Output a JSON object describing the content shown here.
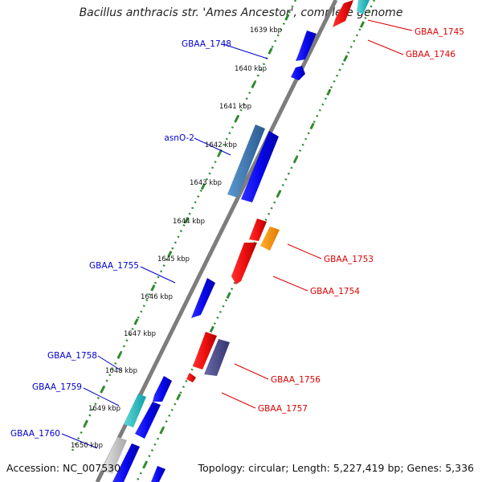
{
  "header": {
    "title": "Bacillus anthracis str. 'Ames Ancestor', complete genome"
  },
  "footer": {
    "accession": "Accession: NC_007530",
    "summary": "Topology: circular; Length: 5,227,419 bp; Genes: 5,336"
  },
  "colors": {
    "backbone": "#888888",
    "forward_label": "#0000cc",
    "reverse_label": "#dd0000",
    "tick_mark": "#2e8b2e",
    "blue_gene": "#1010ee",
    "red_gene": "#ee1111",
    "orange_gene": "#ff9900",
    "teal_gene": "#1fb8b8",
    "steelblue_gene": "#3a78b8",
    "darkpurple_gene": "#4a4a8a",
    "grey_gene": "#c8c8c8"
  },
  "scale": {
    "ticks": [
      "1639 kbp",
      "1640 kbp",
      "1641 kbp",
      "1642 kbp",
      "1643 kbp",
      "1644 kbp",
      "1645 kbp",
      "1646 kbp",
      "1647 kbp",
      "1648 kbp",
      "1649 kbp",
      "1650 kbp"
    ]
  },
  "gene_labels": {
    "forward": [
      "GBAA_1748",
      "asnO-2",
      "GBAA_1755",
      "GBAA_1758",
      "GBAA_1759",
      "GBAA_1760"
    ],
    "reverse": [
      "GBAA_1745",
      "GBAA_1746",
      "GBAA_1753",
      "GBAA_1754",
      "GBAA_1756",
      "GBAA_1757"
    ]
  }
}
